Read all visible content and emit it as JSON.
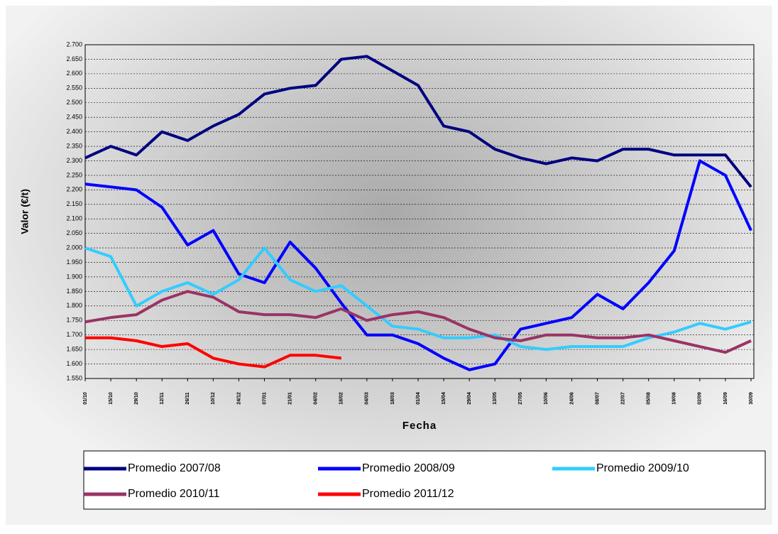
{
  "chart_data": {
    "type": "line",
    "ylabel": "Valor (€/t)",
    "xlabel": "Fecha",
    "categories": [
      "01/10",
      "15/10",
      "29/10",
      "12/11",
      "26/11",
      "10/12",
      "24/12",
      "07/01",
      "21/01",
      "04/02",
      "18/02",
      "04/03",
      "18/03",
      "01/04",
      "15/04",
      "29/04",
      "13/05",
      "27/05",
      "10/06",
      "24/06",
      "08/07",
      "22/07",
      "05/08",
      "19/08",
      "02/09",
      "16/09",
      "30/09"
    ],
    "series": [
      {
        "name": "Promedio 2007/08",
        "color": "#000080",
        "values": [
          2310,
          2350,
          2320,
          2400,
          2370,
          2420,
          2460,
          2530,
          2550,
          2560,
          2650,
          2660,
          2610,
          2560,
          2420,
          2400,
          2340,
          2310,
          2290,
          2310,
          2300,
          2340,
          2340,
          2320,
          2320,
          2320,
          2210
        ]
      },
      {
        "name": "Promedio 2008/09",
        "color": "#0000ff",
        "values": [
          2220,
          2210,
          2200,
          2140,
          2010,
          2060,
          1910,
          1880,
          2020,
          1930,
          1810,
          1700,
          1700,
          1670,
          1620,
          1580,
          1600,
          1720,
          1740,
          1760,
          1840,
          1790,
          1880,
          1990,
          2300,
          2250,
          2060
        ]
      },
      {
        "name": "Promedio 2009/10",
        "color": "#33ccff",
        "values": [
          2000,
          1970,
          1800,
          1850,
          1880,
          1840,
          1890,
          2000,
          1890,
          1850,
          1870,
          1800,
          1730,
          1720,
          1690,
          1690,
          1700,
          1660,
          1650,
          1660,
          1660,
          1660,
          1690,
          1710,
          1740,
          1720,
          1745
        ]
      },
      {
        "name": "Promedio 2010/11",
        "color": "#993366",
        "values": [
          1745,
          1760,
          1770,
          1820,
          1850,
          1830,
          1780,
          1770,
          1770,
          1760,
          1790,
          1750,
          1770,
          1780,
          1760,
          1720,
          1690,
          1680,
          1700,
          1700,
          1690,
          1690,
          1700,
          1680,
          1660,
          1640,
          1680
        ]
      },
      {
        "name": "Promedio 2011/12",
        "color": "#ff0000",
        "values": [
          1690,
          1690,
          1680,
          1660,
          1670,
          1620,
          1600,
          1590,
          1630,
          1630,
          1620,
          null,
          null,
          null,
          null,
          null,
          null,
          null,
          null,
          null,
          null,
          null,
          null,
          null,
          null,
          null,
          null
        ]
      }
    ],
    "ylim": [
      1550,
      2700
    ],
    "yticks": [
      {
        "value": 1550,
        "label": "1.550"
      },
      {
        "value": 1600,
        "label": "1.600"
      },
      {
        "value": 1650,
        "label": "1.650"
      },
      {
        "value": 1700,
        "label": "1.700"
      },
      {
        "value": 1750,
        "label": "1.750"
      },
      {
        "value": 1800,
        "label": "1.800"
      },
      {
        "value": 1850,
        "label": "1.850"
      },
      {
        "value": 1900,
        "label": "1.900"
      },
      {
        "value": 1950,
        "label": "1.950"
      },
      {
        "value": 2000,
        "label": "2.000"
      },
      {
        "value": 2050,
        "label": "2.050"
      },
      {
        "value": 2100,
        "label": "2.100"
      },
      {
        "value": 2150,
        "label": "2.150"
      },
      {
        "value": 2200,
        "label": "2.200"
      },
      {
        "value": 2250,
        "label": "2.250"
      },
      {
        "value": 2300,
        "label": "2.300"
      },
      {
        "value": 2350,
        "label": "2.350"
      },
      {
        "value": 2400,
        "label": "2.400"
      },
      {
        "value": 2450,
        "label": "2.450"
      },
      {
        "value": 2500,
        "label": "2.500"
      },
      {
        "value": 2550,
        "label": "2.550"
      },
      {
        "value": 2600,
        "label": "2.600"
      },
      {
        "value": 2650,
        "label": "2.650"
      },
      {
        "value": 2700,
        "label": "2.700"
      }
    ],
    "grid": true,
    "legend": "bottom"
  }
}
